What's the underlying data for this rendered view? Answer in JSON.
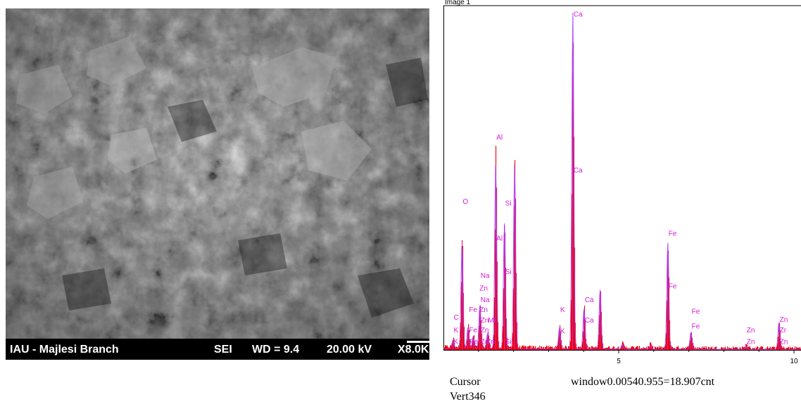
{
  "sem": {
    "label_left": "IAU - Majlesi Branch",
    "mode": "SEI",
    "wd": "WD = 9.4",
    "kv": "20.00 kV",
    "mag": "X8.0K"
  },
  "footer": {
    "cursor_label": "Cursor",
    "window_text": "window0.00540.955=18.907cnt",
    "vert_text": "Vert346"
  },
  "chart_data": {
    "type": "area",
    "title": "Image 1",
    "xlabel": "",
    "ylabel": "",
    "xlim": [
      0,
      10.2
    ],
    "ylim": [
      0,
      346
    ],
    "xticks": [
      "5",
      "10"
    ],
    "xtick_values": [
      5,
      10
    ],
    "colors": {
      "spectrum": "#ee0000",
      "profile": "#b040ff",
      "labels": "#d61ad6"
    },
    "peaks": [
      {
        "x": 0.27,
        "y": 8
      },
      {
        "x": 0.53,
        "y": 110
      },
      {
        "x": 0.7,
        "y": 22
      },
      {
        "x": 0.85,
        "y": 12
      },
      {
        "x": 1.04,
        "y": 45
      },
      {
        "x": 1.26,
        "y": 16
      },
      {
        "x": 1.49,
        "y": 190
      },
      {
        "x": 1.74,
        "y": 130
      },
      {
        "x": 2.03,
        "y": 190
      },
      {
        "x": 3.31,
        "y": 22
      },
      {
        "x": 3.69,
        "y": 346
      },
      {
        "x": 4.01,
        "y": 42
      },
      {
        "x": 4.47,
        "y": 62
      },
      {
        "x": 5.1,
        "y": 5
      },
      {
        "x": 5.9,
        "y": 4
      },
      {
        "x": 6.4,
        "y": 110
      },
      {
        "x": 7.06,
        "y": 18
      },
      {
        "x": 8.64,
        "y": 4
      },
      {
        "x": 9.57,
        "y": 28
      }
    ],
    "element_labels": [
      {
        "text": "Ca",
        "x": 3.69,
        "y": 342
      },
      {
        "text": "Al",
        "x": 1.49,
        "y": 216
      },
      {
        "text": "Ca",
        "x": 3.69,
        "y": 182
      },
      {
        "text": "O",
        "x": 0.53,
        "y": 150
      },
      {
        "text": "Si",
        "x": 1.74,
        "y": 148
      },
      {
        "text": "Al",
        "x": 1.49,
        "y": 112
      },
      {
        "text": "Fe",
        "x": 6.4,
        "y": 117
      },
      {
        "text": "Na",
        "x": 1.04,
        "y": 74
      },
      {
        "text": "Si",
        "x": 1.74,
        "y": 78
      },
      {
        "text": "Zn",
        "x": 1.01,
        "y": 61
      },
      {
        "text": "Na",
        "x": 1.04,
        "y": 49
      },
      {
        "text": "Fe",
        "x": 6.4,
        "y": 63
      },
      {
        "text": "Fe",
        "x": 0.71,
        "y": 39
      },
      {
        "text": "Zn",
        "x": 1.01,
        "y": 39
      },
      {
        "text": "K",
        "x": 3.31,
        "y": 39
      },
      {
        "text": "Ca",
        "x": 4.01,
        "y": 49
      },
      {
        "text": "C",
        "x": 0.27,
        "y": 31
      },
      {
        "text": "Ca",
        "x": 4.01,
        "y": 28
      },
      {
        "text": "Fe",
        "x": 7.06,
        "y": 37
      },
      {
        "text": "Zn",
        "x": 1.04,
        "y": 28
      },
      {
        "text": "Mi",
        "x": 1.25,
        "y": 28
      },
      {
        "text": "Fe",
        "x": 7.06,
        "y": 22
      },
      {
        "text": "Zn",
        "x": 9.57,
        "y": 29
      },
      {
        "text": "K",
        "x": 0.27,
        "y": 18
      },
      {
        "text": "Fe",
        "x": 0.71,
        "y": 18
      },
      {
        "text": "Zn",
        "x": 1.04,
        "y": 18
      },
      {
        "text": "Zn",
        "x": 8.63,
        "y": 18
      },
      {
        "text": "K",
        "x": 3.31,
        "y": 17
      },
      {
        "text": "Zr",
        "x": 9.57,
        "y": 18
      },
      {
        "text": "K",
        "x": 0.27,
        "y": 6
      },
      {
        "text": "Fe",
        "x": 0.73,
        "y": 6
      },
      {
        "text": "Zn",
        "x": 1.04,
        "y": 6
      },
      {
        "text": "Zn",
        "x": 1.21,
        "y": 6
      },
      {
        "text": "Si",
        "x": 1.74,
        "y": 6
      },
      {
        "text": "Zn",
        "x": 8.63,
        "y": 6
      },
      {
        "text": "Zn",
        "x": 9.57,
        "y": 6
      }
    ]
  }
}
